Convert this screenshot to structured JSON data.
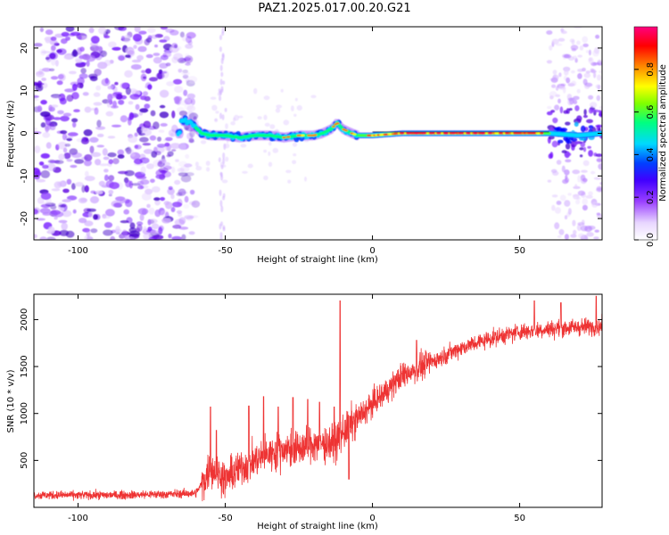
{
  "title": "PAZ1.2025.017.00.20.G21",
  "chart_data": [
    {
      "type": "heatmap",
      "xlabel": "Height of straight line (km)",
      "ylabel": "Frequency (Hz)",
      "xlim": [
        -115,
        78
      ],
      "ylim": [
        -25,
        25
      ],
      "xticks": [
        -100,
        -50,
        0,
        50
      ],
      "yticks": [
        -20,
        -10,
        0,
        10,
        20
      ],
      "colorbar": {
        "label": "Normalized spectral amplitude",
        "range": [
          0,
          1
        ],
        "ticks": [
          "0.0",
          "0.2",
          "0.4",
          "0.6",
          "0.8"
        ],
        "tick_values": [
          0,
          0.2,
          0.4,
          0.6,
          0.8
        ],
        "colormap": [
          "#ffffff",
          "#b06aff",
          "#5500dd",
          "#0000ff",
          "#00c8ff",
          "#00ff80",
          "#80ff00",
          "#ffff00",
          "#ff8000",
          "#ff0000",
          "#ff0080"
        ]
      },
      "ridge_path": [
        [
          -65,
          3
        ],
        [
          -62,
          2.5
        ],
        [
          -58,
          0
        ],
        [
          -55,
          -0.5
        ],
        [
          -50,
          -0.5
        ],
        [
          -45,
          -1
        ],
        [
          -40,
          -0.5
        ],
        [
          -35,
          -0.5
        ],
        [
          -30,
          -1
        ],
        [
          -25,
          -0.5
        ],
        [
          -20,
          -0.5
        ],
        [
          -17,
          0
        ],
        [
          -14,
          1
        ],
        [
          -12,
          2.5
        ],
        [
          -10,
          1
        ],
        [
          -7,
          0
        ],
        [
          -5,
          -0.5
        ],
        [
          0,
          -0.5
        ],
        [
          10,
          0
        ],
        [
          20,
          0
        ],
        [
          30,
          0
        ],
        [
          40,
          0
        ],
        [
          50,
          0
        ],
        [
          60,
          0
        ],
        [
          70,
          -0.5
        ],
        [
          78,
          0
        ]
      ]
    },
    {
      "type": "line",
      "xlabel": "Height of straight line (km)",
      "ylabel": "SNR (10 * v/v)",
      "xlim": [
        -115,
        78
      ],
      "ylim": [
        0,
        2270
      ],
      "xticks": [
        -100,
        -50,
        0,
        50
      ],
      "yticks": [
        500,
        1000,
        1500,
        2000
      ],
      "color": "#ee3333",
      "trend": [
        [
          -115,
          130
        ],
        [
          -90,
          130
        ],
        [
          -70,
          140
        ],
        [
          -60,
          150
        ],
        [
          -57,
          300
        ],
        [
          -55,
          420
        ],
        [
          -50,
          300
        ],
        [
          -45,
          420
        ],
        [
          -40,
          500
        ],
        [
          -35,
          570
        ],
        [
          -30,
          620
        ],
        [
          -25,
          620
        ],
        [
          -20,
          680
        ],
        [
          -15,
          680
        ],
        [
          -12,
          700
        ],
        [
          -10,
          800
        ],
        [
          -5,
          950
        ],
        [
          0,
          1100
        ],
        [
          5,
          1250
        ],
        [
          10,
          1400
        ],
        [
          15,
          1480
        ],
        [
          20,
          1550
        ],
        [
          30,
          1700
        ],
        [
          40,
          1800
        ],
        [
          50,
          1870
        ],
        [
          60,
          1900
        ],
        [
          70,
          1920
        ],
        [
          78,
          1930
        ]
      ],
      "spikes": [
        [
          -55,
          1070
        ],
        [
          -53,
          820
        ],
        [
          -42,
          1080
        ],
        [
          -37,
          1180
        ],
        [
          -32,
          1070
        ],
        [
          -27,
          1170
        ],
        [
          -22,
          1150
        ],
        [
          -18,
          1120
        ],
        [
          -13,
          1070
        ],
        [
          -11,
          2200
        ],
        [
          -8,
          300
        ],
        [
          2,
          1150
        ],
        [
          15,
          1780
        ],
        [
          55,
          2200
        ],
        [
          64,
          2180
        ],
        [
          76,
          2250
        ]
      ]
    }
  ]
}
